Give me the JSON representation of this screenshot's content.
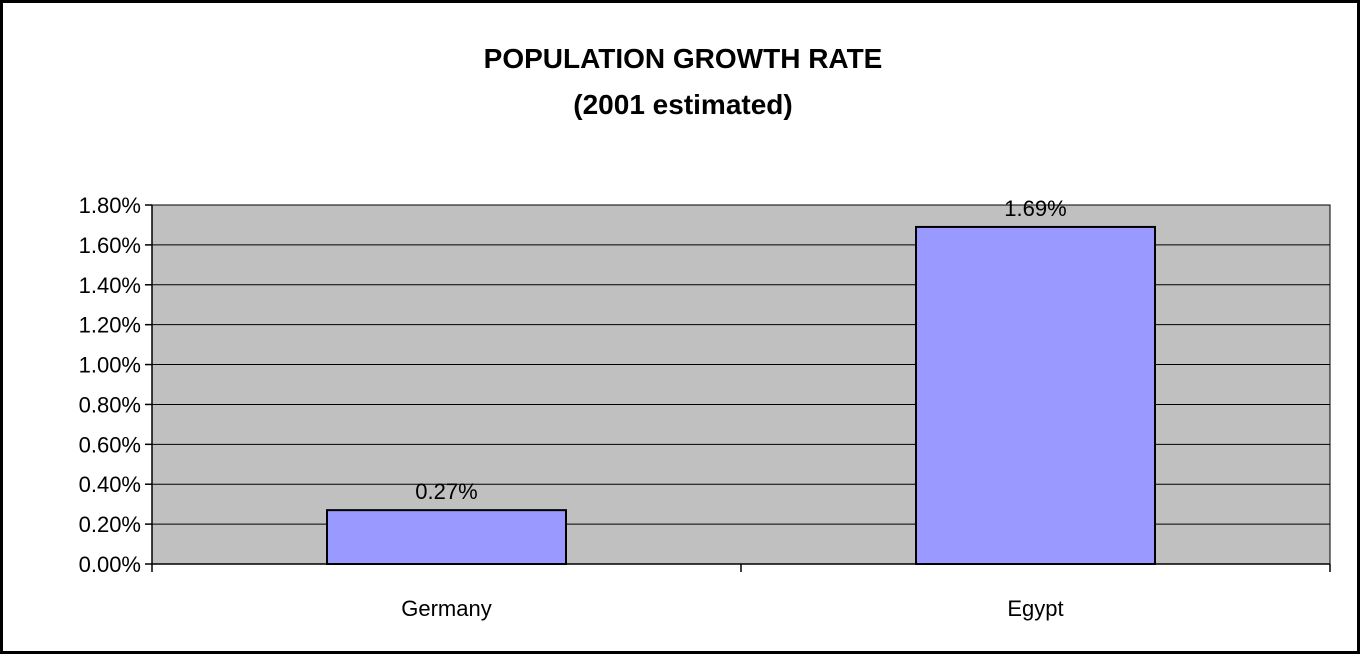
{
  "chart_data": {
    "type": "bar",
    "title": "POPULATION GROWTH RATE",
    "subtitle": "(2001 estimated)",
    "categories": [
      "Germany",
      "Egypt"
    ],
    "values": [
      0.27,
      1.69
    ],
    "data_labels": [
      "0.27%",
      "1.69%"
    ],
    "ylim": [
      0,
      1.8
    ],
    "y_ticks": [
      0,
      0.2,
      0.4,
      0.6,
      0.8,
      1.0,
      1.2,
      1.4,
      1.6,
      1.8
    ],
    "y_tick_labels": [
      "0.00%",
      "0.20%",
      "0.40%",
      "0.60%",
      "0.80%",
      "1.00%",
      "1.20%",
      "1.40%",
      "1.60%",
      "1.80%"
    ],
    "xlabel": "",
    "ylabel": "",
    "grid": true,
    "legend": "none",
    "colors": {
      "bar": "#9999ff",
      "plot_background": "#c0c0c0",
      "gridline": "#000000",
      "border": "#000000"
    }
  }
}
